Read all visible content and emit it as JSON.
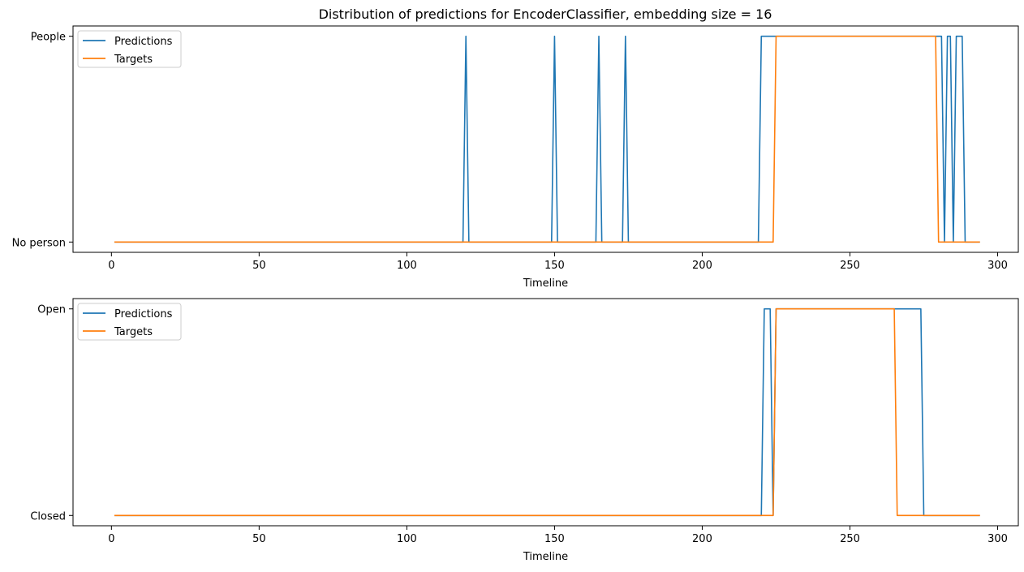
{
  "title": "Distribution of predictions for EncoderClassifier, embedding size = 16",
  "colors": {
    "predictions": "#1f77b4",
    "targets": "#ff7f0e"
  },
  "chart_data": [
    {
      "type": "line",
      "xlabel": "Timeline",
      "ylabel": "",
      "xlim": [
        -13,
        307
      ],
      "ylim": [
        -0.05,
        1.05
      ],
      "xticks": [
        0,
        50,
        100,
        150,
        200,
        250,
        300
      ],
      "yticks": [
        {
          "value": 0,
          "label": "No person"
        },
        {
          "value": 1,
          "label": "People"
        }
      ],
      "legend": "top-left",
      "grid": false,
      "series": [
        {
          "name": "Predictions",
          "color": "#1f77b4",
          "x": [
            1,
            119,
            120,
            121,
            149,
            150,
            151,
            164,
            165,
            166,
            173,
            174,
            175,
            219,
            220,
            280,
            281,
            282,
            283,
            284,
            285,
            286,
            288,
            289,
            294
          ],
          "y": [
            0,
            0,
            1,
            0,
            0,
            1,
            0,
            0,
            1,
            0,
            0,
            1,
            0,
            0,
            1,
            1,
            1,
            0,
            1,
            1,
            0,
            1,
            1,
            0,
            0
          ]
        },
        {
          "name": "Targets",
          "color": "#ff7f0e",
          "x": [
            1,
            224,
            225,
            279,
            280,
            294
          ],
          "y": [
            0,
            0,
            1,
            1,
            0,
            0
          ]
        }
      ]
    },
    {
      "type": "line",
      "xlabel": "Timeline",
      "ylabel": "",
      "xlim": [
        -13,
        307
      ],
      "ylim": [
        -0.05,
        1.05
      ],
      "xticks": [
        0,
        50,
        100,
        150,
        200,
        250,
        300
      ],
      "yticks": [
        {
          "value": 0,
          "label": "Closed"
        },
        {
          "value": 1,
          "label": "Open"
        }
      ],
      "legend": "top-left",
      "grid": false,
      "series": [
        {
          "name": "Predictions",
          "color": "#1f77b4",
          "x": [
            1,
            220,
            221,
            223,
            224,
            225,
            274,
            275,
            294
          ],
          "y": [
            0,
            0,
            1,
            1,
            0,
            1,
            1,
            0,
            0
          ]
        },
        {
          "name": "Targets",
          "color": "#ff7f0e",
          "x": [
            1,
            224,
            225,
            265,
            266,
            294
          ],
          "y": [
            0,
            0,
            1,
            1,
            0,
            0
          ]
        }
      ]
    }
  ]
}
